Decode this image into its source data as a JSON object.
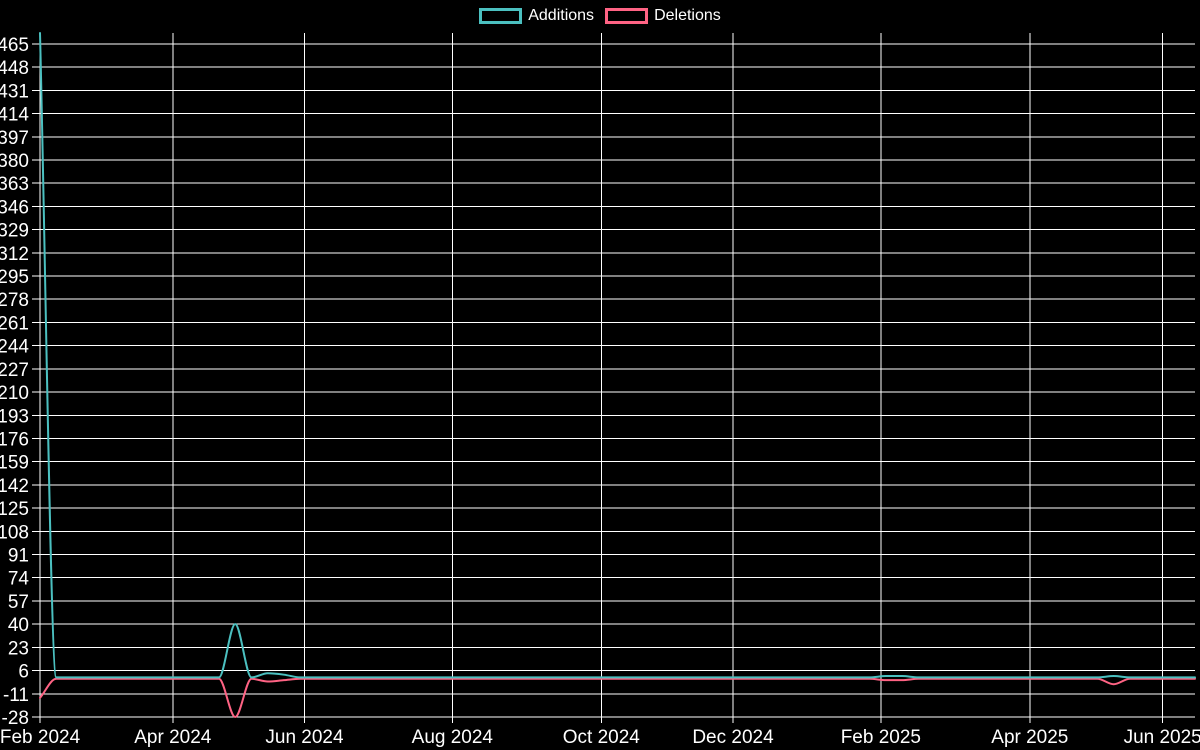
{
  "chart_data": {
    "type": "line",
    "title": "",
    "legend_position": "top",
    "background_color": "#000000",
    "grid_color": "#ffffff",
    "text_color": "#ffffff",
    "curve": "monotone",
    "x_axis": {
      "unit": "week",
      "ticks": [
        {
          "label": "Feb 2024",
          "pos": 0.0
        },
        {
          "label": "Apr 2024",
          "pos": 0.115
        },
        {
          "label": "Jun 2024",
          "pos": 0.229
        },
        {
          "label": "Aug 2024",
          "pos": 0.357
        },
        {
          "label": "Oct 2024",
          "pos": 0.486
        },
        {
          "label": "Dec 2024",
          "pos": 0.6
        },
        {
          "label": "Feb 2025",
          "pos": 0.728
        },
        {
          "label": "Apr 2025",
          "pos": 0.857
        },
        {
          "label": "Jun 2025",
          "pos": 0.972
        }
      ]
    },
    "y_axis": {
      "min": -28,
      "max": 473,
      "tick_step": 17,
      "tick_values": [
        465,
        448,
        431,
        414,
        397,
        380,
        363,
        346,
        329,
        312,
        295,
        278,
        261,
        244,
        227,
        210,
        193,
        176,
        159,
        142,
        125,
        108,
        91,
        74,
        57,
        40,
        23,
        6,
        -11,
        -28
      ]
    },
    "series": [
      {
        "name": "Additions",
        "color": "#4bc0c0",
        "values": [
          473,
          1,
          1,
          1,
          1,
          1,
          1,
          1,
          1,
          1,
          1,
          1,
          40,
          1,
          4,
          3,
          1,
          1,
          1,
          1,
          1,
          1,
          1,
          1,
          1,
          1,
          1,
          1,
          1,
          1,
          1,
          1,
          1,
          1,
          1,
          1,
          1,
          1,
          1,
          1,
          1,
          1,
          1,
          1,
          1,
          1,
          1,
          1,
          1,
          1,
          1,
          1,
          2,
          2,
          1,
          1,
          1,
          1,
          1,
          1,
          1,
          1,
          1,
          1,
          1,
          1,
          2,
          1,
          1,
          1,
          1,
          1
        ]
      },
      {
        "name": "Deletions",
        "color": "#ff6384",
        "values": [
          -14,
          0,
          0,
          0,
          0,
          0,
          0,
          0,
          0,
          0,
          0,
          0,
          -28,
          0,
          -2,
          -1,
          0,
          0,
          0,
          0,
          0,
          0,
          0,
          0,
          0,
          0,
          0,
          0,
          0,
          0,
          0,
          0,
          0,
          0,
          0,
          0,
          0,
          0,
          0,
          0,
          0,
          0,
          0,
          0,
          0,
          0,
          0,
          0,
          0,
          0,
          0,
          0,
          -1,
          -1,
          0,
          0,
          0,
          0,
          0,
          0,
          0,
          0,
          0,
          0,
          0,
          0,
          -4,
          0,
          0,
          0,
          0,
          0
        ]
      }
    ]
  }
}
